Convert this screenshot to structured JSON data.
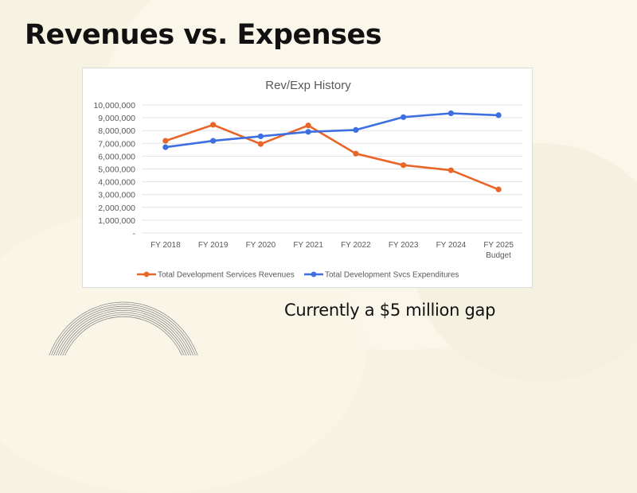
{
  "slide": {
    "title": "Revenues vs. Expenses",
    "caption": "Currently a $5 million gap"
  },
  "colors": {
    "background": "#f7f3e3",
    "revenues": "#e8662a",
    "expenditures": "#3e6fe0",
    "gridline": "#e3e3e3",
    "axis_text": "#595959"
  },
  "chart_data": {
    "type": "line",
    "title": "Rev/Exp History",
    "xlabel": "",
    "ylabel": "",
    "categories": [
      "FY 2018",
      "FY 2019",
      "FY 2020",
      "FY 2021",
      "FY 2022",
      "FY 2023",
      "FY 2024",
      "FY 2025 Budget"
    ],
    "category_lines": [
      [
        "FY 2018"
      ],
      [
        "FY 2019"
      ],
      [
        "FY 2020"
      ],
      [
        "FY 2021"
      ],
      [
        "FY 2022"
      ],
      [
        "FY 2023"
      ],
      [
        "FY 2024"
      ],
      [
        "FY 2025",
        "Budget"
      ]
    ],
    "ylim": [
      0,
      10000000
    ],
    "yticks": [
      0,
      1000000,
      2000000,
      3000000,
      4000000,
      5000000,
      6000000,
      7000000,
      8000000,
      9000000,
      10000000
    ],
    "ytick_labels": [
      "-",
      "1,000,000",
      "2,000,000",
      "3,000,000",
      "4,000,000",
      "5,000,000",
      "6,000,000",
      "7,000,000",
      "8,000,000",
      "9,000,000",
      "10,000,000"
    ],
    "grid": true,
    "legend_position": "bottom",
    "series": [
      {
        "name": "Total Development Services Revenues",
        "color": "#e8662a",
        "values": [
          7200000,
          8450000,
          6950000,
          8400000,
          6200000,
          5300000,
          4900000,
          3400000
        ]
      },
      {
        "name": "Total Development Svcs Expenditures",
        "color": "#3e6fe0",
        "values": [
          6700000,
          7200000,
          7550000,
          7900000,
          8050000,
          9050000,
          9350000,
          9200000
        ]
      }
    ]
  }
}
